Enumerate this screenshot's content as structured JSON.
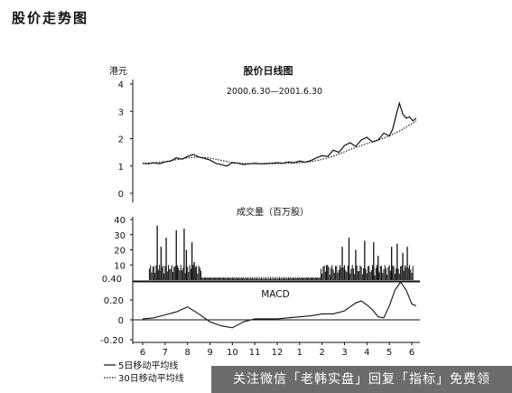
{
  "heading": "股价走势图",
  "watermark_text": "关注微信「老韩实盘」回复「指标」免费领",
  "colors": {
    "ink": "#111111",
    "watermark_bg": "#6c6c6c"
  },
  "chart_data": [
    {
      "type": "line",
      "title": "股价日线图",
      "subtitle": "2000.6.30—2001.6.30",
      "ylabel": "港元",
      "ylim": [
        0,
        4
      ],
      "yticks": [
        "0",
        "1",
        "2",
        "3",
        "4"
      ],
      "x_range": [
        0,
        12
      ],
      "series": [
        {
          "name": "5日移动平均线",
          "x": [
            0,
            0.25,
            0.5,
            0.75,
            1,
            1.25,
            1.5,
            1.75,
            2,
            2.25,
            2.5,
            2.75,
            3,
            3.25,
            3.5,
            3.75,
            4,
            4.25,
            4.5,
            4.75,
            5,
            5.25,
            5.5,
            5.75,
            6,
            6.25,
            6.5,
            6.75,
            7,
            7.25,
            7.5,
            7.75,
            8,
            8.25,
            8.5,
            8.75,
            9,
            9.25,
            9.5,
            9.75,
            10,
            10.25,
            10.5,
            10.75,
            11,
            11.15,
            11.3,
            11.45,
            11.6,
            11.75,
            11.9,
            12.05,
            12.2
          ],
          "y": [
            1.1,
            1.08,
            1.12,
            1.08,
            1.15,
            1.18,
            1.3,
            1.25,
            1.35,
            1.42,
            1.33,
            1.28,
            1.22,
            1.1,
            1.05,
            1.0,
            1.12,
            1.1,
            1.05,
            1.08,
            1.1,
            1.08,
            1.09,
            1.1,
            1.12,
            1.1,
            1.15,
            1.12,
            1.18,
            1.14,
            1.2,
            1.3,
            1.38,
            1.35,
            1.58,
            1.5,
            1.75,
            1.85,
            1.72,
            1.95,
            2.05,
            1.88,
            1.95,
            2.2,
            2.1,
            2.35,
            2.85,
            3.3,
            2.9,
            2.75,
            2.8,
            2.65,
            2.75
          ]
        },
        {
          "name": "30日移动平均线",
          "x": [
            0,
            0.5,
            1,
            1.5,
            2,
            2.5,
            3,
            3.5,
            4,
            4.5,
            5,
            5.5,
            6,
            6.5,
            7,
            7.5,
            8,
            8.5,
            9,
            9.5,
            10,
            10.5,
            11,
            11.5,
            12,
            12.2
          ],
          "y": [
            1.1,
            1.11,
            1.16,
            1.23,
            1.3,
            1.33,
            1.29,
            1.21,
            1.13,
            1.09,
            1.08,
            1.08,
            1.09,
            1.1,
            1.12,
            1.16,
            1.24,
            1.36,
            1.52,
            1.68,
            1.82,
            1.95,
            2.1,
            2.3,
            2.55,
            2.65
          ]
        }
      ]
    },
    {
      "type": "bar",
      "title": "成交量（百万股）",
      "ylim": [
        0,
        40
      ],
      "yticks": [
        "0",
        "10",
        "20",
        "30",
        "40"
      ],
      "x_range": [
        0,
        12
      ],
      "notable_bars": [
        {
          "x": 0.65,
          "value": 36
        },
        {
          "x": 0.82,
          "value": 22
        },
        {
          "x": 1.05,
          "value": 28
        },
        {
          "x": 1.5,
          "value": 33
        },
        {
          "x": 1.85,
          "value": 34
        },
        {
          "x": 1.95,
          "value": 20
        },
        {
          "x": 2.2,
          "value": 25
        },
        {
          "x": 2.3,
          "value": 12
        },
        {
          "x": 8.2,
          "value": 10
        },
        {
          "x": 8.9,
          "value": 22
        },
        {
          "x": 9.2,
          "value": 28
        },
        {
          "x": 9.5,
          "value": 20
        },
        {
          "x": 9.9,
          "value": 26
        },
        {
          "x": 10.3,
          "value": 25
        },
        {
          "x": 10.5,
          "value": 16
        },
        {
          "x": 11.1,
          "value": 22
        },
        {
          "x": 11.35,
          "value": 24
        },
        {
          "x": 11.6,
          "value": 18
        },
        {
          "x": 11.8,
          "value": 22
        }
      ]
    },
    {
      "type": "line",
      "title": "MACD",
      "ylim": [
        -0.2,
        0.4
      ],
      "yticks": [
        "-0.20",
        "0",
        "0.20",
        "0.40"
      ],
      "x_range": [
        0,
        12
      ],
      "series": [
        {
          "name": "MACD",
          "x": [
            0,
            0.5,
            1,
            1.5,
            2,
            2.5,
            3,
            3.5,
            4,
            4.5,
            5,
            5.5,
            6,
            6.5,
            7,
            7.5,
            8,
            8.5,
            9,
            9.25,
            9.5,
            9.75,
            10,
            10.25,
            10.5,
            10.75,
            11,
            11.25,
            11.5,
            11.75,
            12,
            12.2
          ],
          "y": [
            0.01,
            0.02,
            0.05,
            0.08,
            0.13,
            0.06,
            -0.02,
            -0.06,
            -0.08,
            -0.02,
            0.01,
            0.01,
            0.01,
            0.02,
            0.03,
            0.04,
            0.06,
            0.06,
            0.09,
            0.13,
            0.17,
            0.19,
            0.15,
            0.1,
            0.03,
            0.02,
            0.14,
            0.3,
            0.38,
            0.3,
            0.16,
            0.14
          ]
        }
      ]
    },
    {
      "type": "axis",
      "x_tick_labels": [
        "6",
        "7",
        "8",
        "9",
        "10",
        "11",
        "12",
        "1",
        "2",
        "3",
        "4",
        "5",
        "6"
      ],
      "legend": [
        {
          "name": "5日移动平均线",
          "style": "solid"
        },
        {
          "name": "30日移动平均线",
          "style": "dotted"
        }
      ]
    }
  ]
}
